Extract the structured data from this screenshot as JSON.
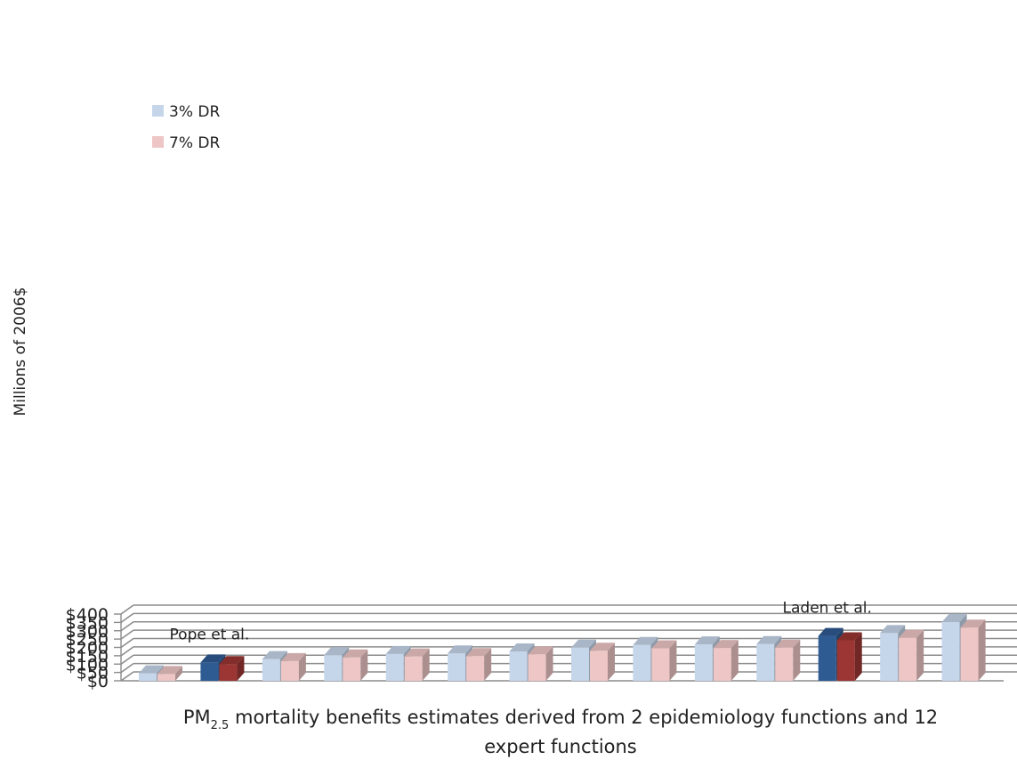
{
  "chart_data": {
    "type": "bar",
    "ylabel": "Millions of 2006$",
    "xlabel_main": "PM",
    "xlabel_sub": "2.5",
    "xlabel_rest": " mortality benefits estimates derived from 2 epidemiology functions and 12",
    "xlabel_line2": "expert functions",
    "ylim": [
      0,
      400
    ],
    "yticks": [
      0,
      50,
      100,
      150,
      200,
      250,
      300,
      350,
      400
    ],
    "ytick_labels": [
      "$0",
      "$50",
      "$100",
      "$150",
      "$200",
      "$250",
      "$300",
      "$350",
      "$400"
    ],
    "grid": true,
    "legend_position": "top-left",
    "series": [
      {
        "name": "3% DR",
        "color": "#c6d6ea",
        "highlight_color": "#2f5b93",
        "values": [
          45,
          110,
          130,
          154,
          161,
          164,
          176,
          199,
          215,
          218,
          220,
          269,
          286,
          353
        ]
      },
      {
        "name": "7% DR",
        "color": "#eec6c6",
        "highlight_color": "#9b3634",
        "values": [
          41,
          100,
          118,
          140,
          146,
          148,
          159,
          180,
          195,
          197,
          199,
          243,
          258,
          319
        ]
      }
    ],
    "highlighted_indices": [
      1,
      11
    ],
    "annotations": [
      {
        "text": "Pope et al.",
        "index": 1
      },
      {
        "text": "Laden et al.",
        "index": 11
      }
    ]
  }
}
